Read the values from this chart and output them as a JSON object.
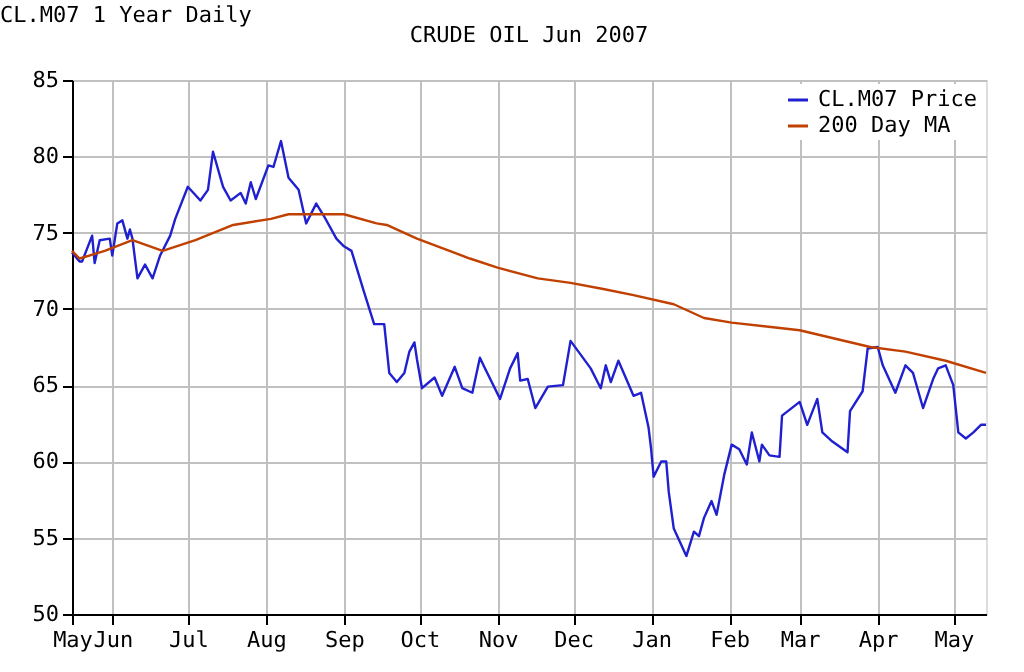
{
  "chart_data": {
    "type": "line",
    "title": "CRUDE OIL Jun 2007",
    "annotations": [
      "CL.M07 1 Year Daily"
    ],
    "xlim": [
      "2006-05-16",
      "2007-05-14"
    ],
    "xticks": [
      {
        "value": "2006-05-16",
        "label": "May"
      },
      {
        "value": "2006-06-01",
        "label": "Jun"
      },
      {
        "value": "2006-07-01",
        "label": "Jul"
      },
      {
        "value": "2006-08-01",
        "label": "Aug"
      },
      {
        "value": "2006-09-01",
        "label": "Sep"
      },
      {
        "value": "2006-10-01",
        "label": "Oct"
      },
      {
        "value": "2006-11-01",
        "label": "Nov"
      },
      {
        "value": "2006-12-01",
        "label": "Dec"
      },
      {
        "value": "2007-01-01",
        "label": "Jan"
      },
      {
        "value": "2007-02-01",
        "label": "Feb"
      },
      {
        "value": "2007-03-01",
        "label": "Mar"
      },
      {
        "value": "2007-04-01",
        "label": "Apr"
      },
      {
        "value": "2007-05-01",
        "label": "May"
      }
    ],
    "ylim": [
      50,
      85
    ],
    "yticks": [
      50,
      55,
      60,
      65,
      70,
      75,
      80,
      85
    ],
    "grid": true,
    "legend": "top right",
    "marker": "none",
    "line_style": "solid",
    "series": [
      {
        "name": "CL.M07 Price",
        "color": "#2020d0",
        "x": [
          "2006-05-16",
          "2006-05-19",
          "2006-05-20",
          "2006-05-24",
          "2006-05-25",
          "2006-05-27",
          "2006-05-31",
          "2006-06-01",
          "2006-06-03",
          "2006-06-05",
          "2006-06-07",
          "2006-06-08",
          "2006-06-09",
          "2006-06-11",
          "2006-06-14",
          "2006-06-17",
          "2006-06-20",
          "2006-06-24",
          "2006-06-26",
          "2006-07-01",
          "2006-07-06",
          "2006-07-09",
          "2006-07-11",
          "2006-07-15",
          "2006-07-18",
          "2006-07-22",
          "2006-07-24",
          "2006-07-26",
          "2006-07-28",
          "2006-08-02",
          "2006-08-04",
          "2006-08-07",
          "2006-08-10",
          "2006-08-14",
          "2006-08-17",
          "2006-08-21",
          "2006-08-24",
          "2006-08-29",
          "2006-09-01",
          "2006-09-04",
          "2006-09-09",
          "2006-09-13",
          "2006-09-17",
          "2006-09-19",
          "2006-09-22",
          "2006-09-25",
          "2006-09-27",
          "2006-09-29",
          "2006-09-30",
          "2006-10-02",
          "2006-10-07",
          "2006-10-10",
          "2006-10-15",
          "2006-10-18",
          "2006-10-22",
          "2006-10-25",
          "2006-10-27",
          "2006-11-02",
          "2006-11-06",
          "2006-11-09",
          "2006-11-10",
          "2006-11-13",
          "2006-11-16",
          "2006-11-21",
          "2006-11-27",
          "2006-11-30",
          "2006-12-08",
          "2006-12-12",
          "2006-12-14",
          "2006-12-16",
          "2006-12-19",
          "2006-12-25",
          "2006-12-28",
          "2006-12-31",
          "2007-01-01",
          "2007-01-02",
          "2007-01-05",
          "2007-01-07",
          "2007-01-08",
          "2007-01-10",
          "2007-01-15",
          "2007-01-18",
          "2007-01-20",
          "2007-01-22",
          "2007-01-25",
          "2007-01-27",
          "2007-01-30",
          "2007-02-02",
          "2007-02-05",
          "2007-02-08",
          "2007-02-10",
          "2007-02-13",
          "2007-02-14",
          "2007-02-17",
          "2007-02-21",
          "2007-02-22",
          "2007-03-01",
          "2007-03-04",
          "2007-03-08",
          "2007-03-10",
          "2007-03-14",
          "2007-03-20",
          "2007-03-21",
          "2007-03-26",
          "2007-03-28",
          "2007-04-01",
          "2007-04-03",
          "2007-04-08",
          "2007-04-12",
          "2007-04-15",
          "2007-04-19",
          "2007-04-23",
          "2007-04-25",
          "2007-04-28",
          "2007-05-01",
          "2007-05-03",
          "2007-05-06",
          "2007-05-09",
          "2007-05-12",
          "2007-05-14"
        ],
        "values": [
          73.7,
          73.1,
          73.1,
          74.8,
          73.0,
          74.5,
          74.6,
          73.5,
          75.6,
          75.8,
          74.6,
          75.2,
          74.6,
          72.0,
          72.9,
          72.0,
          73.5,
          74.8,
          75.9,
          78.0,
          77.1,
          77.8,
          80.3,
          78.0,
          77.1,
          77.6,
          76.9,
          78.3,
          77.2,
          79.4,
          79.3,
          81.0,
          78.6,
          77.8,
          75.6,
          76.9,
          76.1,
          74.6,
          74.1,
          73.8,
          71.1,
          69.0,
          69.0,
          65.8,
          65.2,
          65.8,
          67.2,
          67.8,
          66.7,
          64.8,
          65.5,
          64.3,
          66.2,
          64.8,
          64.5,
          66.8,
          66.1,
          64.1,
          66.1,
          67.1,
          65.3,
          65.4,
          63.5,
          64.9,
          65.0,
          67.9,
          66.1,
          64.8,
          66.3,
          65.2,
          66.6,
          64.3,
          64.5,
          62.2,
          60.8,
          59.0,
          60.0,
          60.0,
          58.0,
          55.6,
          53.8,
          55.4,
          55.1,
          56.3,
          57.4,
          56.5,
          59.1,
          61.1,
          60.8,
          59.8,
          61.9,
          60.0,
          61.1,
          60.4,
          60.3,
          63.0,
          63.9,
          62.4,
          64.1,
          61.9,
          61.3,
          60.6,
          63.3,
          64.6,
          67.4,
          67.5,
          66.3,
          64.5,
          66.3,
          65.8,
          63.5,
          65.4,
          66.1,
          66.3,
          65.0,
          61.9,
          61.5,
          61.9,
          62.4,
          62.4
        ]
      },
      {
        "name": "200 Day MA",
        "color": "#c04000",
        "x": [
          "2006-05-16",
          "2006-05-19",
          "2006-05-29",
          "2006-06-09",
          "2006-06-21",
          "2006-07-04",
          "2006-07-19",
          "2006-08-03",
          "2006-08-10",
          "2006-09-01",
          "2006-09-14",
          "2006-09-18",
          "2006-09-30",
          "2006-10-21",
          "2006-11-01",
          "2006-11-17",
          "2006-11-30",
          "2006-12-13",
          "2006-12-25",
          "2007-01-10",
          "2007-01-22",
          "2007-02-02",
          "2007-03-01",
          "2007-03-29",
          "2007-04-12",
          "2007-04-28",
          "2007-05-14"
        ],
        "values": [
          73.8,
          73.3,
          73.8,
          74.5,
          73.8,
          74.5,
          75.5,
          75.9,
          76.2,
          76.2,
          75.6,
          75.5,
          74.6,
          73.3,
          72.7,
          72.0,
          71.7,
          71.3,
          70.9,
          70.3,
          69.4,
          69.1,
          68.6,
          67.5,
          67.2,
          66.6,
          65.8
        ]
      }
    ]
  }
}
